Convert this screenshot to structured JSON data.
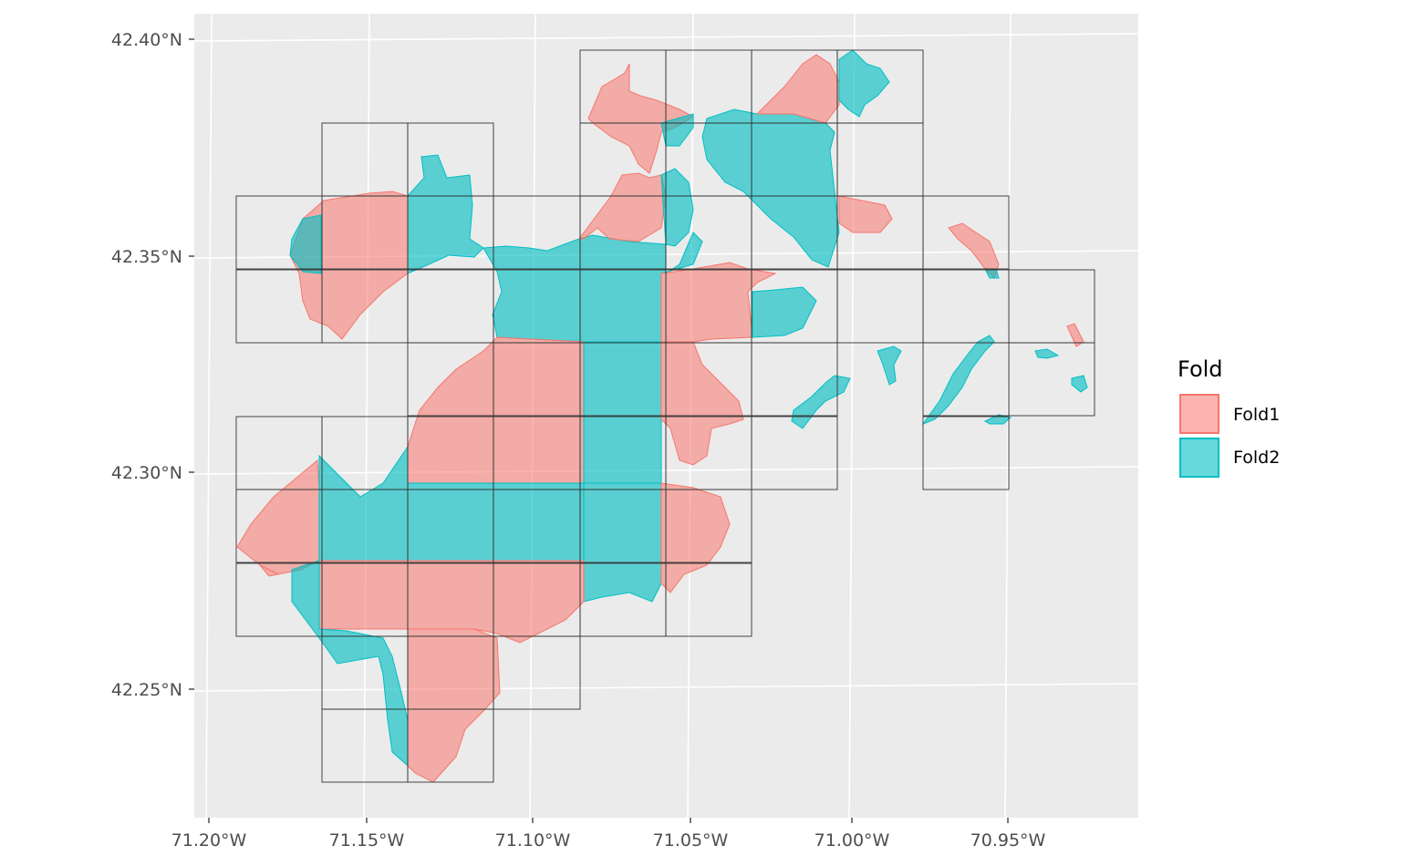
{
  "chart_data": {
    "type": "map",
    "title": "",
    "xlabel": "",
    "ylabel": "",
    "x_ticks": [
      "71.20°W",
      "71.15°W",
      "71.10°W",
      "71.05°W",
      "71.00°W",
      "70.95°W"
    ],
    "y_ticks": [
      "42.40°N",
      "42.35°N",
      "42.30°N",
      "42.25°N"
    ],
    "legend": {
      "title": "Fold",
      "placement": "right",
      "entries": [
        {
          "label": "Fold1",
          "fill": "#F8766D",
          "stroke": "#F8766D"
        },
        {
          "label": "Fold2",
          "fill": "#00BFC4",
          "stroke": "#00BFC4"
        }
      ]
    },
    "panel_background": "#EBEBEB",
    "grid": true,
    "grid_cells_outlined": true
  }
}
